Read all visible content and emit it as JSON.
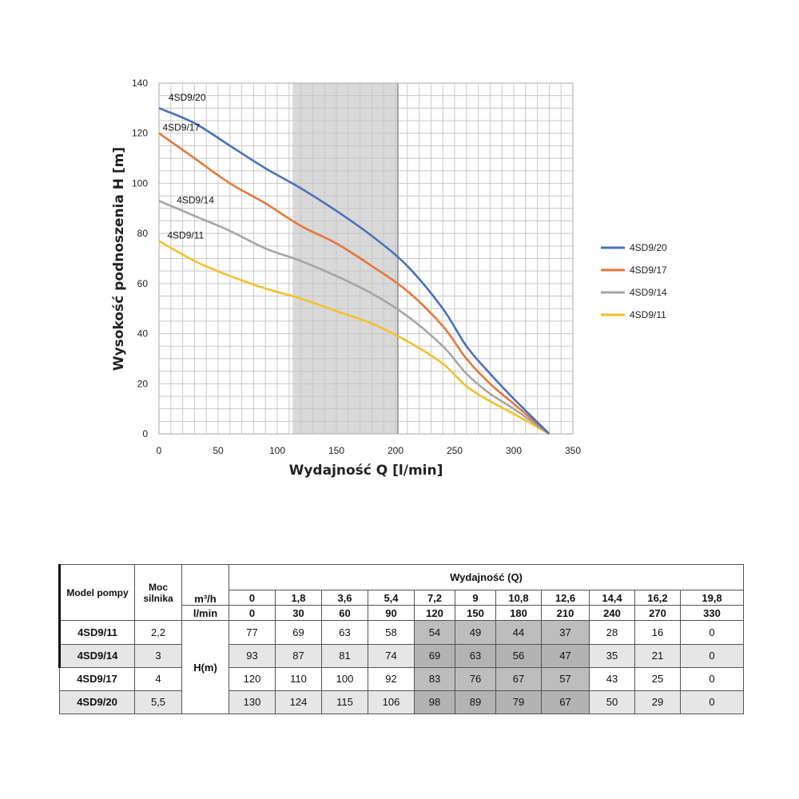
{
  "chart_data": {
    "type": "line",
    "xlabel": "Wydajność Q [l/min]",
    "ylabel": "Wysokość podnoszenia H [m]",
    "xlim": [
      0,
      350
    ],
    "ylim": [
      0,
      140
    ],
    "x_ticks": [
      0,
      50,
      100,
      150,
      200,
      250,
      300,
      350
    ],
    "y_ticks": [
      0,
      20,
      40,
      60,
      80,
      100,
      120,
      140
    ],
    "grid": true,
    "shaded_range": [
      113,
      202
    ],
    "legend_position": "right",
    "series": [
      {
        "name": "4SD9/20",
        "color": "#4a72b8",
        "x": [
          0,
          30,
          60,
          90,
          120,
          150,
          180,
          210,
          240,
          260,
          280,
          300,
          330
        ],
        "y": [
          130,
          124,
          115,
          106,
          98,
          89,
          79,
          67,
          50,
          35,
          24,
          14,
          0
        ]
      },
      {
        "name": "4SD9/17",
        "color": "#e4773b",
        "x": [
          0,
          30,
          60,
          90,
          120,
          150,
          180,
          210,
          240,
          260,
          280,
          300,
          330
        ],
        "y": [
          120,
          110,
          100,
          92,
          83,
          76,
          67,
          57,
          43,
          30,
          20,
          12,
          0
        ]
      },
      {
        "name": "4SD9/14",
        "color": "#a5a5a5",
        "x": [
          0,
          30,
          60,
          90,
          120,
          150,
          180,
          210,
          240,
          260,
          280,
          300,
          330
        ],
        "y": [
          93,
          87,
          81,
          74,
          69,
          63,
          56,
          47,
          35,
          24,
          16,
          10,
          0
        ]
      },
      {
        "name": "4SD9/11",
        "color": "#f5c02b",
        "x": [
          0,
          30,
          60,
          90,
          120,
          150,
          180,
          210,
          240,
          260,
          280,
          300,
          330
        ],
        "y": [
          77,
          69,
          63,
          58,
          54,
          49,
          44,
          37,
          28,
          19,
          13,
          8,
          0
        ]
      }
    ],
    "curve_labels": [
      {
        "text": "4SD9/20",
        "x": 8,
        "y": 132
      },
      {
        "text": "4SD9/17",
        "x": 3,
        "y": 120
      },
      {
        "text": "4SD9/14",
        "x": 15,
        "y": 91
      },
      {
        "text": "4SD9/11",
        "x": 7,
        "y": 77
      }
    ]
  },
  "table": {
    "col_model": "Model pompy",
    "col_power": "Moc silnika",
    "flow_header": "Wydajność (Q)",
    "unit_m3h": "m³/h",
    "unit_lmin": "l/min",
    "h_label": "H(m)",
    "q_m3h": [
      "0",
      "1,8",
      "3,6",
      "5,4",
      "7,2",
      "9",
      "10,8",
      "12,6",
      "14,4",
      "16,2",
      "19,8"
    ],
    "q_lmin": [
      "0",
      "30",
      "60",
      "90",
      "120",
      "150",
      "180",
      "210",
      "240",
      "270",
      "330"
    ],
    "rows": [
      {
        "model": "4SD9/11",
        "power": "2,2",
        "values": [
          "77",
          "69",
          "63",
          "58",
          "54",
          "49",
          "44",
          "37",
          "28",
          "16",
          "0"
        ]
      },
      {
        "model": "4SD9/14",
        "power": "3",
        "values": [
          "93",
          "87",
          "81",
          "74",
          "69",
          "63",
          "56",
          "47",
          "35",
          "21",
          "0"
        ]
      },
      {
        "model": "4SD9/17",
        "power": "4",
        "values": [
          "120",
          "110",
          "100",
          "92",
          "83",
          "76",
          "67",
          "57",
          "43",
          "25",
          "0"
        ]
      },
      {
        "model": "4SD9/20",
        "power": "5,5",
        "values": [
          "130",
          "124",
          "115",
          "106",
          "98",
          "89",
          "79",
          "67",
          "50",
          "29",
          "0"
        ]
      }
    ],
    "highlight_columns": [
      4,
      5,
      6,
      7
    ]
  }
}
